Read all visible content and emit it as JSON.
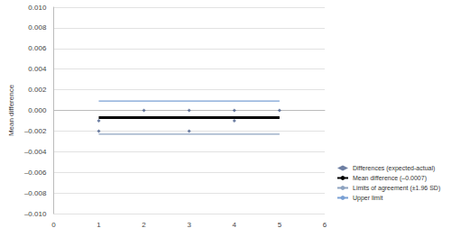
{
  "chart_data": {
    "type": "scatter",
    "y_label": "Mean difference",
    "xlim": [
      0,
      6
    ],
    "xticks": [
      0,
      1,
      2,
      3,
      4,
      5,
      6
    ],
    "ylim": [
      -0.01,
      0.01
    ],
    "yticks": [
      {
        "value": -0.01,
        "label": "–0.010"
      },
      {
        "value": -0.008,
        "label": "–0.008"
      },
      {
        "value": -0.006,
        "label": "–0.006"
      },
      {
        "value": -0.004,
        "label": "–0.004"
      },
      {
        "value": -0.002,
        "label": "–0.002"
      },
      {
        "value": 0,
        "label": "0.000"
      },
      {
        "value": 0.002,
        "label": "0.002"
      },
      {
        "value": 0.004,
        "label": "0.004"
      },
      {
        "value": 0.006,
        "label": "0.006"
      },
      {
        "value": 0.008,
        "label": "0.008"
      },
      {
        "value": 0.01,
        "label": "0.010"
      }
    ],
    "grid": true,
    "legend": "right",
    "series": [
      {
        "name": "Differences (expected-actual)",
        "type": "scatter",
        "marker": "diamond",
        "color": "#4a5f8c",
        "x": [
          1,
          1,
          2,
          3,
          3,
          4,
          4,
          5
        ],
        "values": [
          -0.001,
          -0.002,
          0,
          0,
          -0.002,
          0,
          -0.001,
          0
        ]
      },
      {
        "name": "Mean difference (–0.0007)",
        "type": "line",
        "color": "#000000",
        "x": [
          1,
          5
        ],
        "values": [
          -0.0007,
          -0.0007
        ]
      },
      {
        "name": "Limits of agreement (±1.96 SD)",
        "type": "line",
        "color": "#8ea3c0",
        "x": [
          1,
          5
        ],
        "values": [
          -0.0023,
          -0.0023
        ]
      },
      {
        "name": "Upper limit",
        "type": "line",
        "color": "#7aa0d4",
        "x": [
          1,
          5
        ],
        "values": [
          0.0009,
          0.0009
        ]
      }
    ]
  }
}
